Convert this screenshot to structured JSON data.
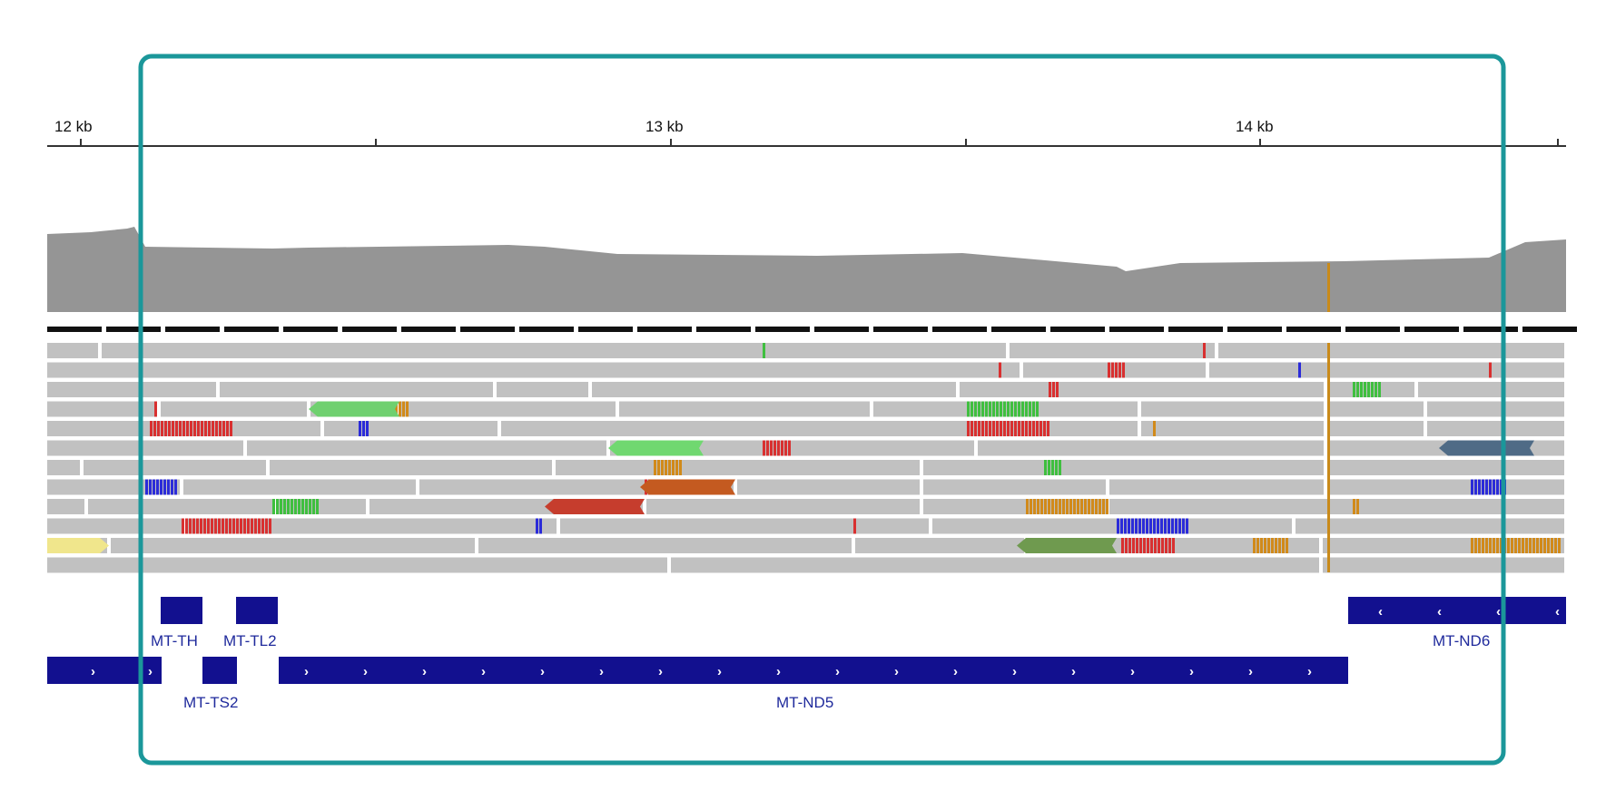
{
  "ruler": {
    "labels": [
      "12 kb",
      "13 kb",
      "14 kb"
    ],
    "start_bp": 11945,
    "end_bp": 14520
  },
  "colors": {
    "coverage": "#959595",
    "read": "#c1c1c1",
    "gene": "#12108f",
    "gene_label": "#1f2a9c",
    "highlight_frame": "#1b979a",
    "mismatch_A": "#3fbf3f",
    "mismatch_C": "#2b2bd8",
    "mismatch_G": "#d18a1a",
    "mismatch_T": "#d83030",
    "coverage_snp": "#c98a1a"
  },
  "genes": {
    "row1": [
      {
        "name": "MT-TH",
        "strand": "+"
      },
      {
        "name": "MT-TL2",
        "strand": "+"
      },
      {
        "name": "MT-ND6",
        "strand": "-"
      }
    ],
    "row2": [
      {
        "name": "MT-TS2",
        "strand": "+"
      },
      {
        "name": "MT-ND5",
        "strand": "+"
      }
    ]
  },
  "icons": {
    "forward": "chevron-right-icon",
    "reverse": "chevron-left-icon"
  }
}
